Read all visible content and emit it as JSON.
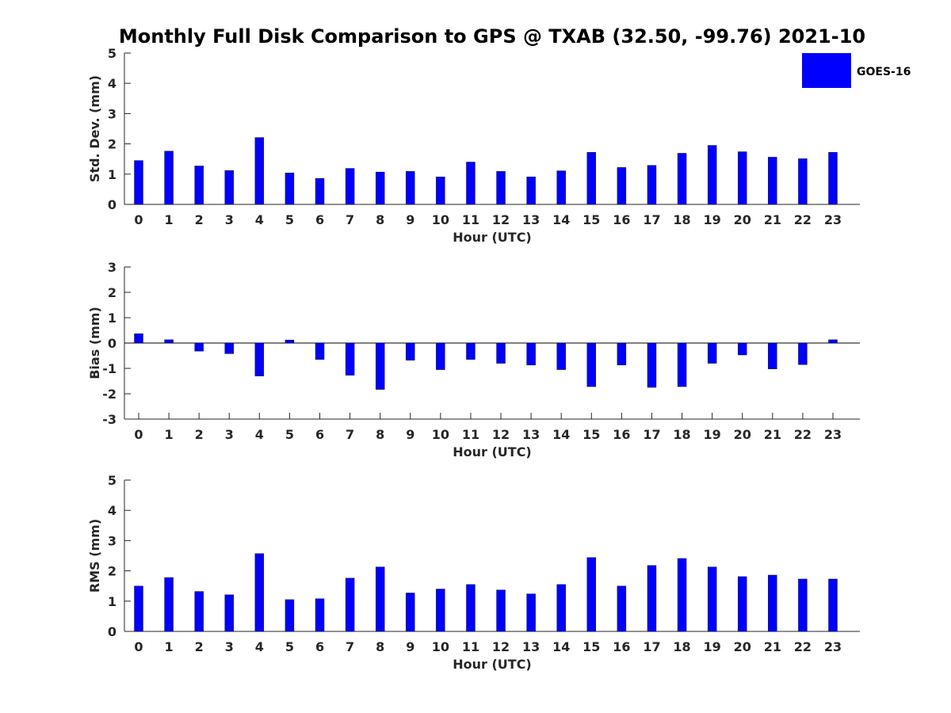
{
  "chart_data": {
    "title": "Monthly Full Disk Comparison to GPS @ TXAB (32.50, -99.76) 2021-10",
    "legend": {
      "label": "GOES-16",
      "placement": "top-right",
      "color": "#0000ff"
    },
    "hours": [
      "0",
      "1",
      "2",
      "3",
      "4",
      "5",
      "6",
      "7",
      "8",
      "9",
      "10",
      "11",
      "12",
      "13",
      "14",
      "15",
      "16",
      "17",
      "18",
      "19",
      "20",
      "21",
      "22",
      "23"
    ],
    "panels": [
      {
        "type": "bar",
        "xlabel": "Hour (UTC)",
        "ylabel": "Std. Dev. (mm)",
        "ylim": [
          0,
          5
        ],
        "yticks": [
          "0",
          "1",
          "2",
          "3",
          "4",
          "5"
        ],
        "series": [
          {
            "name": "GOES-16",
            "values": [
              1.45,
              1.76,
              1.27,
              1.12,
              2.21,
              1.04,
              0.86,
              1.19,
              1.07,
              1.09,
              0.91,
              1.4,
              1.09,
              0.91,
              1.11,
              1.72,
              1.22,
              1.29,
              1.69,
              1.95,
              1.74,
              1.56,
              1.51,
              1.72
            ]
          }
        ]
      },
      {
        "type": "bar",
        "xlabel": "Hour (UTC)",
        "ylabel": "Bias (mm)",
        "ylim": [
          -3,
          3
        ],
        "yticks": [
          "-3",
          "-2",
          "-1",
          "0",
          "1",
          "2",
          "3"
        ],
        "series": [
          {
            "name": "GOES-16",
            "values": [
              0.37,
              0.13,
              -0.32,
              -0.42,
              -1.3,
              0.12,
              -0.65,
              -1.27,
              -1.83,
              -0.68,
              -1.05,
              -0.65,
              -0.8,
              -0.87,
              -1.05,
              -1.72,
              -0.87,
              -1.75,
              -1.72,
              -0.8,
              -0.47,
              -1.02,
              -0.85,
              0.13
            ]
          }
        ]
      },
      {
        "type": "bar",
        "xlabel": "Hour (UTC)",
        "ylabel": "RMS (mm)",
        "ylim": [
          0,
          5
        ],
        "yticks": [
          "0",
          "1",
          "2",
          "3",
          "4",
          "5"
        ],
        "series": [
          {
            "name": "GOES-16",
            "values": [
              1.5,
              1.78,
              1.32,
              1.21,
              2.57,
              1.05,
              1.08,
              1.76,
              2.13,
              1.27,
              1.4,
              1.55,
              1.37,
              1.24,
              1.55,
              2.44,
              1.5,
              2.18,
              2.41,
              2.13,
              1.81,
              1.86,
              1.73,
              1.73
            ]
          }
        ]
      }
    ]
  }
}
